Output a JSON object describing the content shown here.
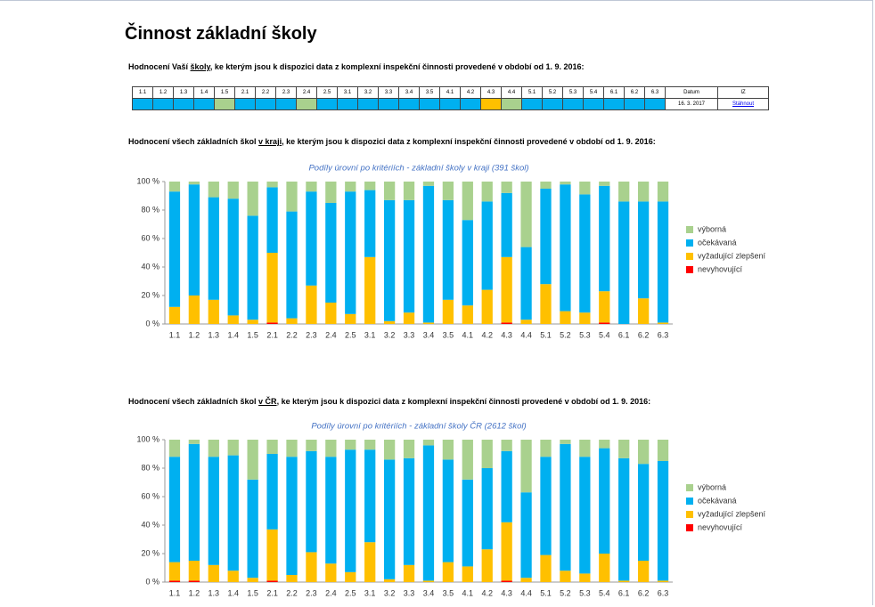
{
  "title": "Činnost základní školy",
  "section1": {
    "before": "Hodnocení Vaší ",
    "underlined": "školy",
    "after": ", ke kterým jsou k dispozici data z komplexní inspekční činnosti provedené v období od 1. 9. 2016:"
  },
  "table": {
    "header": [
      "1.1",
      "1.2",
      "1.3",
      "1.4",
      "1.5",
      "2.1",
      "2.2",
      "2.3",
      "2.4",
      "2.5",
      "3.1",
      "3.2",
      "3.3",
      "3.4",
      "3.5",
      "4.1",
      "4.2",
      "4.3",
      "4.4",
      "5.1",
      "5.2",
      "5.3",
      "5.4",
      "6.1",
      "6.2",
      "6.3",
      "Datum",
      "IZ"
    ],
    "row": {
      "colors": [
        "#00b0f0",
        "#00b0f0",
        "#00b0f0",
        "#00b0f0",
        "#a9d18e",
        "#00b0f0",
        "#00b0f0",
        "#00b0f0",
        "#a9d18e",
        "#00b0f0",
        "#00b0f0",
        "#00b0f0",
        "#00b0f0",
        "#00b0f0",
        "#00b0f0",
        "#00b0f0",
        "#00b0f0",
        "#ffc000",
        "#a9d18e",
        "#00b0f0",
        "#00b0f0",
        "#00b0f0",
        "#00b0f0",
        "#00b0f0",
        "#00b0f0",
        "#00b0f0"
      ],
      "date": "16. 3. 2017",
      "link": "Stáhnout"
    }
  },
  "section2": {
    "before": "Hodnocení všech základních škol ",
    "underlined": "v kraji",
    "after": ", ke kterým jsou k dispozici data z komplexní inspekční činnosti provedené v období od 1. 9. 2016:"
  },
  "section3": {
    "before": "Hodnocení všech základních škol ",
    "underlined": "v ČR",
    "after": ", ke kterým jsou k dispozici data z komplexní inspekční činnosti provedené v období od 1. 9. 2016:"
  },
  "chart_data": [
    {
      "type": "bar",
      "stacked": true,
      "title": "Podíly úrovní po kritériích - základní školy v kraji (391 škol)",
      "categories": [
        "1.1",
        "1.2",
        "1.3",
        "1.4",
        "1.5",
        "2.1",
        "2.2",
        "2.3",
        "2.4",
        "2.5",
        "3.1",
        "3.2",
        "3.3",
        "3.4",
        "3.5",
        "4.1",
        "4.2",
        "4.3",
        "4.4",
        "5.1",
        "5.2",
        "5.3",
        "5.4",
        "6.1",
        "6.2",
        "6.3"
      ],
      "series": [
        {
          "name": "nevyhovující",
          "color": "#ff0000",
          "values": [
            0,
            0,
            0,
            0,
            0,
            1,
            0,
            0,
            0,
            0,
            0,
            0,
            0,
            0,
            0,
            0,
            0,
            1,
            0,
            0,
            0,
            0,
            1,
            0,
            0,
            0
          ]
        },
        {
          "name": "vyžadující zlepšení",
          "color": "#ffc000",
          "values": [
            12,
            20,
            17,
            6,
            3,
            49,
            4,
            27,
            15,
            7,
            47,
            2,
            8,
            1,
            17,
            13,
            24,
            46,
            3,
            28,
            9,
            8,
            22,
            0,
            18,
            1
          ]
        },
        {
          "name": "očekávaná",
          "color": "#00b0f0",
          "values": [
            81,
            78,
            72,
            82,
            73,
            46,
            75,
            66,
            70,
            86,
            47,
            85,
            79,
            96,
            70,
            60,
            62,
            45,
            51,
            67,
            89,
            83,
            74,
            86,
            68,
            85
          ]
        },
        {
          "name": "výborná",
          "color": "#a9d18e",
          "values": [
            7,
            2,
            11,
            12,
            24,
            4,
            21,
            7,
            15,
            7,
            6,
            13,
            13,
            3,
            13,
            27,
            14,
            8,
            46,
            5,
            2,
            9,
            3,
            14,
            14,
            14
          ]
        }
      ],
      "ylim": [
        0,
        100
      ],
      "yticks": [
        {
          "value": 0,
          "label": "0 %"
        },
        {
          "value": 20,
          "label": "20 %"
        },
        {
          "value": 40,
          "label": "40 %"
        },
        {
          "value": 60,
          "label": "60 %"
        },
        {
          "value": 80,
          "label": "80 %"
        },
        {
          "value": 100,
          "label": "100 %"
        }
      ]
    },
    {
      "type": "bar",
      "stacked": true,
      "title": "Podíly úrovní po kritériích - základní školy ČR (2612 škol)",
      "categories": [
        "1.1",
        "1.2",
        "1.3",
        "1.4",
        "1.5",
        "2.1",
        "2.2",
        "2.3",
        "2.4",
        "2.5",
        "3.1",
        "3.2",
        "3.3",
        "3.4",
        "3.5",
        "4.1",
        "4.2",
        "4.3",
        "4.4",
        "5.1",
        "5.2",
        "5.3",
        "5.4",
        "6.1",
        "6.2",
        "6.3"
      ],
      "series": [
        {
          "name": "nevyhovující",
          "color": "#ff0000",
          "values": [
            1,
            1,
            0,
            0,
            0,
            1,
            0,
            0,
            0,
            0,
            0,
            0,
            0,
            0,
            0,
            0,
            0,
            1,
            0,
            0,
            0,
            0,
            0,
            0,
            0,
            0
          ]
        },
        {
          "name": "vyžadující zlepšení",
          "color": "#ffc000",
          "values": [
            13,
            14,
            12,
            8,
            3,
            36,
            5,
            21,
            13,
            7,
            28,
            2,
            12,
            1,
            14,
            11,
            23,
            41,
            3,
            19,
            8,
            6,
            20,
            1,
            15,
            1
          ]
        },
        {
          "name": "očekávaná",
          "color": "#00b0f0",
          "values": [
            74,
            82,
            76,
            81,
            69,
            53,
            83,
            71,
            75,
            86,
            65,
            84,
            75,
            95,
            72,
            61,
            57,
            50,
            60,
            69,
            89,
            82,
            74,
            86,
            68,
            84
          ]
        },
        {
          "name": "výborná",
          "color": "#a9d18e",
          "values": [
            12,
            3,
            12,
            11,
            28,
            10,
            12,
            8,
            12,
            7,
            7,
            14,
            13,
            4,
            14,
            28,
            20,
            8,
            37,
            12,
            3,
            12,
            6,
            13,
            17,
            15
          ]
        }
      ],
      "ylim": [
        0,
        100
      ],
      "yticks": [
        {
          "value": 0,
          "label": "0 %"
        },
        {
          "value": 20,
          "label": "20 %"
        },
        {
          "value": 40,
          "label": "40 %"
        },
        {
          "value": 60,
          "label": "60 %"
        },
        {
          "value": 80,
          "label": "80 %"
        },
        {
          "value": 100,
          "label": "100 %"
        }
      ]
    }
  ]
}
